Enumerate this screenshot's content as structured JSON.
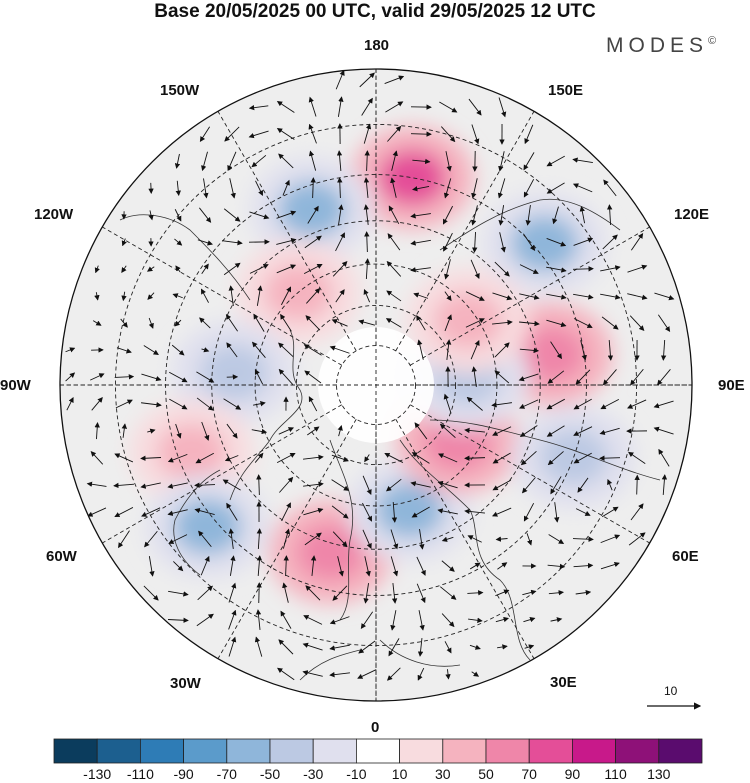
{
  "title": "Base 20/05/2025 00 UTC, valid 29/05/2025 12 UTC",
  "brand": "MODES",
  "brand_mark": "©",
  "map": {
    "projection": "north-polar-stereographic",
    "longitude_labels": [
      {
        "id": "lon-180",
        "text": "180"
      },
      {
        "id": "lon-150e",
        "text": "150E"
      },
      {
        "id": "lon-120e",
        "text": "120E"
      },
      {
        "id": "lon-90e",
        "text": "90E"
      },
      {
        "id": "lon-60e",
        "text": "60E"
      },
      {
        "id": "lon-30e",
        "text": "30E"
      },
      {
        "id": "lon-0",
        "text": "0"
      },
      {
        "id": "lon-30w",
        "text": "30W"
      },
      {
        "id": "lon-60w",
        "text": "60W"
      },
      {
        "id": "lon-90w",
        "text": "90W"
      },
      {
        "id": "lon-120w",
        "text": "120W"
      },
      {
        "id": "lon-150w",
        "text": "150W"
      }
    ],
    "vector_scale_label": "10",
    "anomaly_centers": [
      {
        "name": "pacific-high",
        "lon": 170,
        "lat": 40,
        "sign": "positive",
        "value": 80
      },
      {
        "name": "siberia-high",
        "lon": 100,
        "lat": 47,
        "sign": "positive",
        "value": 70
      },
      {
        "name": "east-asia-low",
        "lon": 130,
        "lat": 38,
        "sign": "negative",
        "value": -55
      },
      {
        "name": "north-pacific-low",
        "lon": -160,
        "lat": 45,
        "sign": "negative",
        "value": -55
      },
      {
        "name": "alaska-ridge",
        "lon": -140,
        "lat": 60,
        "sign": "positive",
        "value": 50
      },
      {
        "name": "canada-low",
        "lon": -95,
        "lat": 55,
        "sign": "negative",
        "value": -35
      },
      {
        "name": "hudson-high",
        "lon": -70,
        "lat": 43,
        "sign": "positive",
        "value": 50
      },
      {
        "name": "atlantic-low",
        "lon": -50,
        "lat": 38,
        "sign": "negative",
        "value": -55
      },
      {
        "name": "east-atlantic-high",
        "lon": -15,
        "lat": 48,
        "sign": "positive",
        "value": 70
      },
      {
        "name": "scandinavia-low",
        "lon": 15,
        "lat": 58,
        "sign": "negative",
        "value": -60
      },
      {
        "name": "western-siberia-high",
        "lon": 55,
        "lat": 65,
        "sign": "positive",
        "value": 70
      },
      {
        "name": "central-asia-low",
        "lon": 70,
        "lat": 40,
        "sign": "negative",
        "value": -40
      },
      {
        "name": "taymyr-low",
        "lon": 95,
        "lat": 67,
        "sign": "negative",
        "value": -40
      },
      {
        "name": "laptev-high",
        "lon": 125,
        "lat": 62,
        "sign": "positive",
        "value": 35
      }
    ]
  },
  "legend": {
    "colors": [
      "#0b3c5d",
      "#1c5f8f",
      "#2e7cb6",
      "#5b9bcb",
      "#8fb6da",
      "#bcc9e3",
      "#e0e0ee",
      "#ffffff",
      "#f8dcdf",
      "#f5b3bf",
      "#ef86a9",
      "#e44e98",
      "#c8198a",
      "#8e1178",
      "#5a0c6e"
    ],
    "tick_labels": [
      "-130",
      "-110",
      "-90",
      "-70",
      "-50",
      "-30",
      "-10",
      "10",
      "30",
      "50",
      "70",
      "90",
      "110",
      "130"
    ]
  }
}
